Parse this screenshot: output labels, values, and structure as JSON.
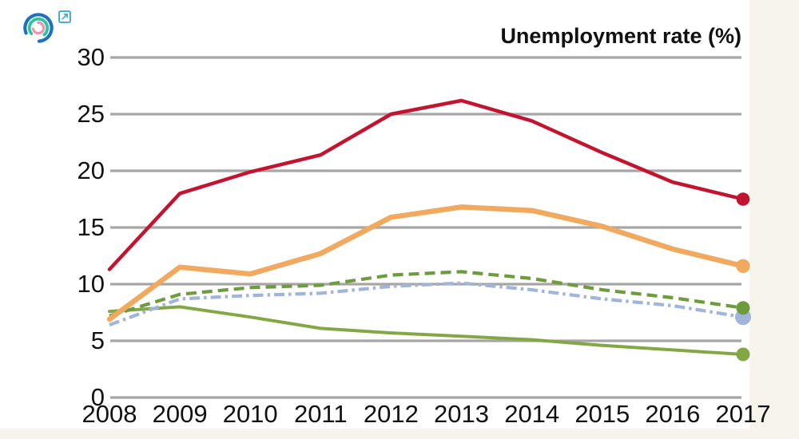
{
  "page": {
    "background_color": "#ffffff",
    "edge_color": "#f7f4ec",
    "text_color": "#111111",
    "grid_color": "#a6a6a6"
  },
  "header": {
    "logo": {
      "icon": "concentric-arcs-logo",
      "outer_arc_color": "#1e72bc",
      "middle_arc_color": "#2bc4a0",
      "inner_arc_color": "#f193b4"
    },
    "external_link": {
      "icon": "external-link-icon",
      "color": "#3dabc9"
    }
  },
  "chart_data": {
    "type": "line",
    "title": "Unemployment rate (%)",
    "xlabel": "",
    "ylabel": "",
    "x": [
      "2008",
      "2009",
      "2010",
      "2011",
      "2012",
      "2013",
      "2014",
      "2015",
      "2016",
      "2017"
    ],
    "ylim": [
      0,
      30
    ],
    "yticks": [
      0,
      5,
      10,
      15,
      20,
      25,
      30
    ],
    "grid": "horizontal",
    "legend": "none",
    "series": [
      {
        "name": "green-solid-line",
        "color": "#84a745",
        "line_style": "solid",
        "stroke_width": 4,
        "dot_radius": 8.5,
        "values": [
          7.6,
          8.0,
          7.1,
          6.1,
          5.7,
          5.4,
          5.1,
          4.6,
          4.2,
          3.8
        ]
      },
      {
        "name": "blue-dash-dot-line",
        "color": "#a0b5d8",
        "line_style": "dash-dot",
        "stroke_width": 4.2,
        "dot_radius": 10,
        "values": [
          6.4,
          8.7,
          9.0,
          9.2,
          9.8,
          10.1,
          9.5,
          8.7,
          8.1,
          7.1
        ]
      },
      {
        "name": "green-dashed-line",
        "color": "#6e9b3d",
        "line_style": "dashed",
        "stroke_width": 4.2,
        "dot_radius": 8.5,
        "values": [
          7.2,
          9.1,
          9.7,
          9.9,
          10.8,
          11.1,
          10.5,
          9.5,
          8.8,
          7.9
        ]
      },
      {
        "name": "orange-solid-line",
        "color": "#f0a95e",
        "line_style": "solid",
        "stroke_width": 6.5,
        "dot_radius": 8.7,
        "values": [
          6.9,
          11.5,
          10.9,
          12.7,
          15.9,
          16.8,
          16.5,
          15.1,
          13.1,
          11.6
        ]
      },
      {
        "name": "red-solid-line",
        "color": "#c2132f",
        "line_style": "solid",
        "stroke_width": 4.5,
        "dot_radius": 8.3,
        "values": [
          11.3,
          18.0,
          19.9,
          21.4,
          25.0,
          26.2,
          24.4,
          21.6,
          19.0,
          17.5
        ]
      }
    ]
  }
}
